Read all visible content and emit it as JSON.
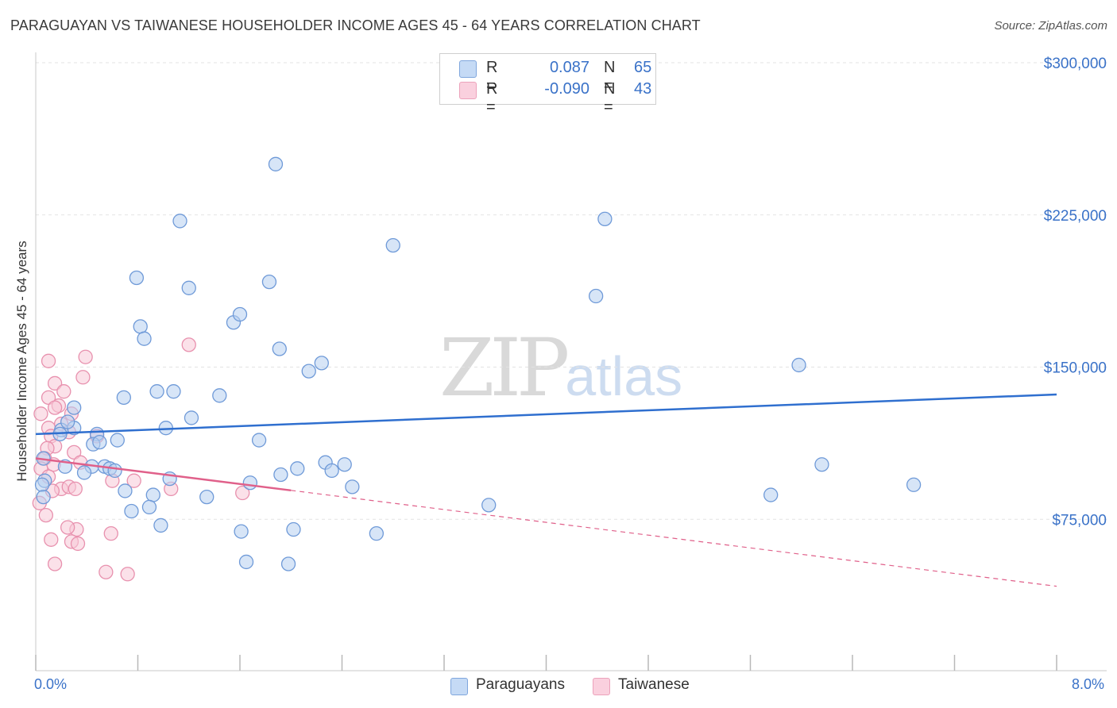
{
  "title": "PARAGUAYAN VS TAIWANESE HOUSEHOLDER INCOME AGES 45 - 64 YEARS CORRELATION CHART",
  "source": "Source: ZipAtlas.com",
  "watermark": {
    "zip": "ZIP",
    "atlas": "atlas"
  },
  "legend_top": {
    "rows": [
      {
        "r_label": "R =",
        "r_value": "0.087",
        "n_label": "N =",
        "n_value": "65",
        "color": "#a9c7ee"
      },
      {
        "r_label": "R =",
        "r_value": "-0.090",
        "n_label": "N =",
        "n_value": "43",
        "color": "#f4b5c9"
      }
    ]
  },
  "legend_bottom": [
    {
      "label": "Paraguayans",
      "color": "#a9c7ee"
    },
    {
      "label": "Taiwanese",
      "color": "#f4b5c9"
    }
  ],
  "colors": {
    "blue_fill": "#b7d0f1",
    "blue_stroke": "#6f9ad8",
    "blue_line": "#2f6fcf",
    "pink_fill": "#f8c8d7",
    "pink_stroke": "#e891ae",
    "pink_line": "#e0608a",
    "axis_text": "#3a72c8",
    "grid": "#e3e3e3"
  },
  "chart_data": {
    "type": "scatter",
    "title": "PARAGUAYAN VS TAIWANESE HOUSEHOLDER INCOME AGES 45 - 64 YEARS CORRELATION CHART",
    "xlabel": "",
    "ylabel": "Householder Income Ages 45 - 64 years",
    "xlim": [
      0,
      8
    ],
    "ylim": [
      0,
      315000
    ],
    "x_tick_labels": [
      "0.0%",
      "8.0%"
    ],
    "y_ticks": [
      75000,
      150000,
      225000,
      300000
    ],
    "y_tick_labels": [
      "$75,000",
      "$150,000",
      "$225,000",
      "$300,000"
    ],
    "grid": true,
    "legend_position": "top-center",
    "series": [
      {
        "name": "Paraguayans",
        "r": 0.087,
        "n": 65,
        "trend": {
          "x": [
            0.0,
            8.0
          ],
          "y": [
            117000,
            136500
          ],
          "dashed_from": null
        },
        "points": [
          [
            1.88,
            250000
          ],
          [
            1.13,
            222000
          ],
          [
            4.46,
            223000
          ],
          [
            2.8,
            210000
          ],
          [
            0.79,
            194000
          ],
          [
            1.2,
            189000
          ],
          [
            1.83,
            192000
          ],
          [
            4.39,
            185000
          ],
          [
            1.55,
            172000
          ],
          [
            1.6,
            176000
          ],
          [
            0.82,
            170000
          ],
          [
            0.85,
            164000
          ],
          [
            1.91,
            159000
          ],
          [
            2.24,
            152000
          ],
          [
            2.14,
            148000
          ],
          [
            5.98,
            151000
          ],
          [
            0.95,
            138000
          ],
          [
            1.08,
            138000
          ],
          [
            1.44,
            136000
          ],
          [
            0.69,
            135000
          ],
          [
            0.3,
            130000
          ],
          [
            1.22,
            125000
          ],
          [
            0.3,
            120000
          ],
          [
            1.02,
            120000
          ],
          [
            0.2,
            119000
          ],
          [
            0.25,
            123000
          ],
          [
            0.48,
            117000
          ],
          [
            0.19,
            117000
          ],
          [
            0.64,
            114000
          ],
          [
            1.75,
            114000
          ],
          [
            0.45,
            112000
          ],
          [
            0.5,
            113000
          ],
          [
            0.06,
            105000
          ],
          [
            0.23,
            101000
          ],
          [
            0.44,
            101000
          ],
          [
            0.54,
            101000
          ],
          [
            0.58,
            100000
          ],
          [
            0.62,
            99000
          ],
          [
            2.05,
            100000
          ],
          [
            2.27,
            103000
          ],
          [
            2.42,
            102000
          ],
          [
            2.32,
            99000
          ],
          [
            0.38,
            98000
          ],
          [
            1.92,
            97000
          ],
          [
            1.05,
            95000
          ],
          [
            0.07,
            94000
          ],
          [
            0.05,
            92000
          ],
          [
            1.68,
            93000
          ],
          [
            2.48,
            91000
          ],
          [
            6.88,
            92000
          ],
          [
            0.7,
            89000
          ],
          [
            0.92,
            87000
          ],
          [
            1.34,
            86000
          ],
          [
            5.76,
            87000
          ],
          [
            0.06,
            86000
          ],
          [
            0.89,
            81000
          ],
          [
            3.55,
            82000
          ],
          [
            0.75,
            79000
          ],
          [
            0.98,
            72000
          ],
          [
            1.61,
            69000
          ],
          [
            2.02,
            70000
          ],
          [
            2.67,
            68000
          ],
          [
            1.65,
            54000
          ],
          [
            1.98,
            53000
          ],
          [
            6.16,
            102000
          ]
        ]
      },
      {
        "name": "Taiwanese",
        "r": -0.09,
        "n": 43,
        "trend": {
          "x": [
            0.0,
            8.0
          ],
          "y": [
            105000,
            42000
          ],
          "solid_until_x": 2.0
        },
        "points": [
          [
            0.1,
            153000
          ],
          [
            0.39,
            155000
          ],
          [
            1.2,
            161000
          ],
          [
            0.37,
            145000
          ],
          [
            0.15,
            142000
          ],
          [
            0.22,
            138000
          ],
          [
            0.1,
            135000
          ],
          [
            0.18,
            131000
          ],
          [
            0.28,
            127000
          ],
          [
            0.04,
            127000
          ],
          [
            0.15,
            130000
          ],
          [
            0.1,
            120000
          ],
          [
            0.2,
            122000
          ],
          [
            0.26,
            118000
          ],
          [
            0.12,
            116000
          ],
          [
            0.48,
            116000
          ],
          [
            0.15,
            111000
          ],
          [
            0.09,
            110000
          ],
          [
            0.3,
            108000
          ],
          [
            0.07,
            105000
          ],
          [
            0.14,
            102000
          ],
          [
            0.35,
            103000
          ],
          [
            0.04,
            100000
          ],
          [
            0.1,
            96000
          ],
          [
            0.6,
            94000
          ],
          [
            0.77,
            94000
          ],
          [
            0.2,
            90000
          ],
          [
            0.26,
            91000
          ],
          [
            0.31,
            90000
          ],
          [
            0.13,
            89000
          ],
          [
            1.06,
            90000
          ],
          [
            1.62,
            88000
          ],
          [
            0.03,
            83000
          ],
          [
            0.08,
            77000
          ],
          [
            0.32,
            70000
          ],
          [
            0.25,
            71000
          ],
          [
            0.59,
            68000
          ],
          [
            0.12,
            65000
          ],
          [
            0.28,
            64000
          ],
          [
            0.33,
            63000
          ],
          [
            0.15,
            53000
          ],
          [
            0.55,
            49000
          ],
          [
            0.72,
            48000
          ]
        ]
      }
    ]
  }
}
